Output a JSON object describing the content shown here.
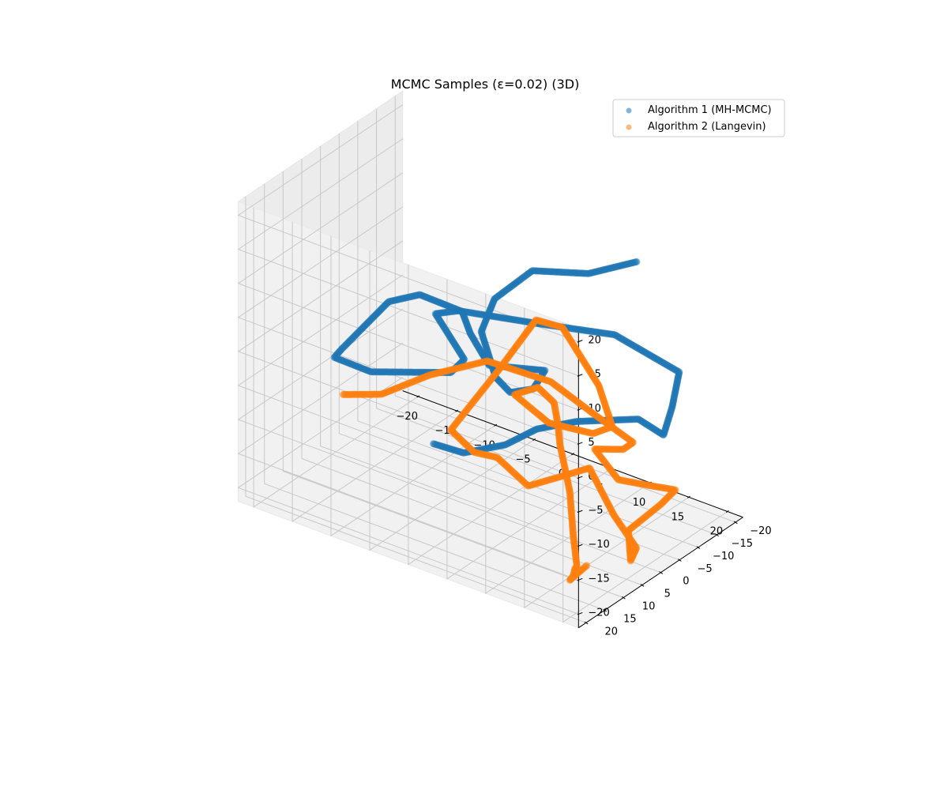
{
  "chart_data": {
    "type": "scatter",
    "projection": "3d",
    "title": "MCMC Samples (ε=0.02) (3D)",
    "xlabel": "",
    "ylabel": "",
    "zlabel": "",
    "xlim": [
      -22,
      22
    ],
    "ylim": [
      -22,
      22
    ],
    "zlim": [
      -22,
      22
    ],
    "xticks": [
      "−20",
      "−15",
      "−10",
      "−5",
      "0",
      "5",
      "10",
      "15",
      "20"
    ],
    "yticks": [
      "−20",
      "−15",
      "−10",
      "−5",
      "0",
      "5",
      "10",
      "15",
      "20"
    ],
    "zticks": [
      "−20",
      "−15",
      "−10",
      "−5",
      "0",
      "5",
      "10",
      "15",
      "20"
    ],
    "grid": true,
    "legend_position": "top-right",
    "series": [
      {
        "name": "Algorithm 1 (MH-MCMC)",
        "color": "#1f77b4",
        "points": [
          [
            -7.4,
            0.0,
            -15.5
          ],
          [
            -3.5,
            0.0,
            -15.2
          ],
          [
            0.0,
            -4.0,
            -14.0
          ],
          [
            2.6,
            -7.0,
            -11.7
          ],
          [
            6.1,
            -10.5,
            -10.4
          ],
          [
            12.1,
            -14.5,
            -9.0
          ],
          [
            15.5,
            -14.2,
            -9.8
          ],
          [
            17.2,
            -13.0,
            -4.5
          ],
          [
            19.8,
            -9.5,
            3.0
          ],
          [
            14.7,
            -2.8,
            8.8
          ],
          [
            6.9,
            1.0,
            8.5
          ],
          [
            -2.8,
            2.8,
            7.0
          ],
          [
            -5.2,
            4.0,
            6.0
          ],
          [
            -0.5,
            6.0,
            2.0
          ],
          [
            -3.8,
            2.8,
            -2.5
          ],
          [
            -14.5,
            2.0,
            -7.2
          ],
          [
            -19.0,
            2.5,
            -6.8
          ],
          [
            -17.5,
            3.5,
            -4.5
          ],
          [
            -11.0,
            4.5,
            5.5
          ],
          [
            -6.5,
            5.5,
            8.8
          ],
          [
            -0.3,
            7.0,
            9.5
          ],
          [
            1.0,
            7.5,
            7.0
          ],
          [
            2.7,
            6.0,
            2.5
          ],
          [
            8.0,
            2.0,
            2.5
          ],
          [
            5.5,
            0.0,
            -2.0
          ],
          [
            -0.6,
            -6.5,
            -7.5
          ],
          [
            -3.7,
            -9.0,
            -7.5
          ],
          [
            -7.0,
            -12.0,
            -3.3
          ],
          [
            -6.5,
            -14.5,
            0.8
          ],
          [
            -3.3,
            -18.0,
            5.0
          ],
          [
            3.0,
            -20.0,
            6.5
          ],
          [
            8.5,
            -21.5,
            10.0
          ]
        ]
      },
      {
        "name": "Algorithm 2 (Langevin)",
        "color": "#ff7f0e",
        "points": [
          [
            -21.0,
            -4.0,
            -15.5
          ],
          [
            -17.0,
            -6.0,
            -14.5
          ],
          [
            -12.0,
            -8.5,
            -10.5
          ],
          [
            -6.0,
            -11.5,
            -7.0
          ],
          [
            1.0,
            -14.0,
            -8.0
          ],
          [
            5.5,
            -16.0,
            -11.5
          ],
          [
            9.5,
            -18.5,
            -15.0
          ],
          [
            7.0,
            -21.0,
            -18.0
          ],
          [
            5.0,
            -17.5,
            -17.5
          ],
          [
            9.5,
            -14.5,
            -19.0
          ],
          [
            16.0,
            -10.0,
            -15.5
          ],
          [
            21.0,
            -6.0,
            -12.5
          ],
          [
            22.0,
            0.0,
            -12.0
          ],
          [
            20.0,
            4.5,
            -15.0
          ],
          [
            21.0,
            6.0,
            -18.5
          ],
          [
            22.0,
            6.5,
            -16.0
          ],
          [
            22.0,
            12.5,
            -9.0
          ],
          [
            21.0,
            17.0,
            -0.8
          ],
          [
            19.0,
            21.0,
            -1.5
          ],
          [
            15.0,
            21.0,
            -4.5
          ],
          [
            11.0,
            21.0,
            -2.0
          ],
          [
            8.0,
            21.0,
            -2.5
          ],
          [
            5.0,
            21.0,
            -0.5
          ],
          [
            7.5,
            13.5,
            6.5
          ],
          [
            9.0,
            6.5,
            12.0
          ],
          [
            10.0,
            1.5,
            9.5
          ],
          [
            13.5,
            -1.0,
            1.5
          ],
          [
            15.5,
            -0.5,
            -3.5
          ],
          [
            13.5,
            0.5,
            -5.0
          ],
          [
            8.5,
            2.0,
            -5.0
          ],
          [
            5.5,
            5.0,
            -1.0
          ],
          [
            9.5,
            7.0,
            2.5
          ],
          [
            14.0,
            12.0,
            4.0
          ],
          [
            15.0,
            13.0,
            1.5
          ],
          [
            15.0,
            12.5,
            -1.5
          ],
          [
            15.8,
            11.5,
            -8.5
          ],
          [
            16.0,
            11.0,
            -15.0
          ],
          [
            16.0,
            10.0,
            -20.0
          ],
          [
            16.0,
            10.5,
            -20.0
          ],
          [
            16.0,
            11.0,
            -21.0
          ],
          [
            15.8,
            11.5,
            -21.5
          ],
          [
            17.5,
            10.5,
            -19.0
          ]
        ]
      }
    ]
  }
}
